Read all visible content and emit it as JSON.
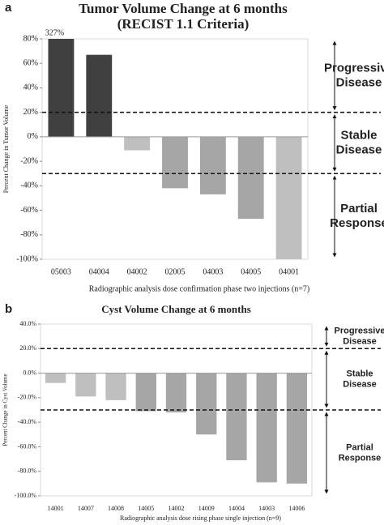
{
  "chart_data": [
    {
      "type": "bar",
      "panel_label": "a",
      "title": "Tumor Volume Change at 6 months",
      "subtitle": "(RECIST 1.1 Criteria)",
      "y_label": "Percent Change in Tumor Volume",
      "x_label": "Radiographic analysis dose confirmation phase two injections (n=7)",
      "categories": [
        "05003",
        "04004",
        "04002",
        "02005",
        "04003",
        "04005",
        "04001"
      ],
      "values": [
        327,
        67,
        -11,
        -42,
        -47,
        -67,
        -100
      ],
      "value_labels": [
        "327%",
        null,
        null,
        null,
        null,
        null,
        null
      ],
      "colors": [
        "#404040",
        "#404040",
        "#bfbfbf",
        "#a6a6a6",
        "#a6a6a6",
        "#a6a6a6",
        "#bfbfbf"
      ],
      "ylim": [
        -100,
        80
      ],
      "yticks": [
        {
          "value": -100,
          "label": "-100%"
        },
        {
          "value": -80,
          "label": "-80%"
        },
        {
          "value": -60,
          "label": "-60%"
        },
        {
          "value": -40,
          "label": "-40%"
        },
        {
          "value": -20,
          "label": "-20%"
        },
        {
          "value": 0,
          "label": "0%"
        },
        {
          "value": 20,
          "label": "20%"
        },
        {
          "value": 40,
          "label": "40%"
        },
        {
          "value": 60,
          "label": "60%"
        },
        {
          "value": 80,
          "label": "80%"
        }
      ],
      "reference_lines": [
        20,
        -30
      ],
      "annotations": [
        {
          "lines": [
            "Progressive",
            "Disease"
          ],
          "color": "#333333"
        },
        {
          "lines": [
            "Stable",
            "Disease"
          ],
          "color": "#bfbfbf"
        },
        {
          "lines": [
            "Partial",
            "Response"
          ],
          "color": "#bfbfbf"
        }
      ]
    },
    {
      "type": "bar",
      "panel_label": "b",
      "title": "Cyst Volume Change at 6 months",
      "y_label": "Percent Change in Cyst Volume",
      "x_label": "Radiographic analysis dose rising phase single injection (n=9)",
      "categories": [
        "14001",
        "14007",
        "14008",
        "14005",
        "14002",
        "14009",
        "14004",
        "14003",
        "14006"
      ],
      "values": [
        -8,
        -19,
        -22,
        -31,
        -32,
        -50,
        -71,
        -89,
        -90
      ],
      "colors": [
        "#bfbfbf",
        "#bfbfbf",
        "#bfbfbf",
        "#a6a6a6",
        "#a6a6a6",
        "#a6a6a6",
        "#a6a6a6",
        "#a6a6a6",
        "#a6a6a6"
      ],
      "ylim": [
        -100,
        40
      ],
      "yticks": [
        {
          "value": -100,
          "label": "-100.0%"
        },
        {
          "value": -80,
          "label": "-80.0%"
        },
        {
          "value": -60,
          "label": "-60.0%"
        },
        {
          "value": -40,
          "label": "-40.0%"
        },
        {
          "value": -20,
          "label": "-20.0%"
        },
        {
          "value": 0,
          "label": "0.0%"
        },
        {
          "value": 20,
          "label": "20.0%"
        },
        {
          "value": 40,
          "label": "40.0%"
        }
      ],
      "reference_lines": [
        20,
        -30
      ],
      "annotations": [
        {
          "lines": [
            "Progressive",
            "Disease"
          ],
          "color": "#333333"
        },
        {
          "lines": [
            "Stable",
            "Disease"
          ],
          "color": "#bfbfbf"
        },
        {
          "lines": [
            "Partial",
            "Response"
          ],
          "color": "#bfbfbf"
        }
      ]
    }
  ]
}
